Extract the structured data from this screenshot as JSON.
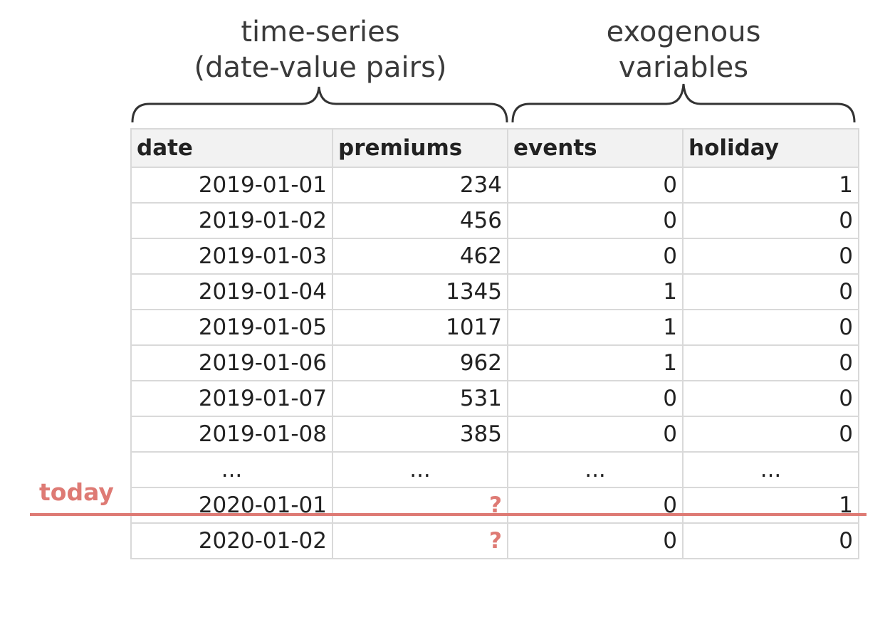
{
  "headers": {
    "time_series": [
      "time-series",
      "(date-value pairs)"
    ],
    "exogenous": [
      "exogenous",
      "variables"
    ]
  },
  "table": {
    "columns": [
      "date",
      "premiums",
      "events",
      "holiday"
    ],
    "rows": [
      [
        "2019-01-01",
        "234",
        "0",
        "1"
      ],
      [
        "2019-01-02",
        "456",
        "0",
        "0"
      ],
      [
        "2019-01-03",
        "462",
        "0",
        "0"
      ],
      [
        "2019-01-04",
        "1345",
        "1",
        "0"
      ],
      [
        "2019-01-05",
        "1017",
        "1",
        "0"
      ],
      [
        "2019-01-06",
        "962",
        "1",
        "0"
      ],
      [
        "2019-01-07",
        "531",
        "0",
        "0"
      ],
      [
        "2019-01-08",
        "385",
        "0",
        "0"
      ]
    ],
    "ellipsis": "...",
    "future_rows": [
      [
        "2020-01-01",
        "?",
        "0",
        "1"
      ],
      [
        "2020-01-02",
        "?",
        "0",
        "0"
      ]
    ]
  },
  "today_label": "today",
  "colors": {
    "accent": "#de7a74",
    "header_bg": "#f2f2f2",
    "grid": "#d9d9d9",
    "brace": "#333333"
  }
}
